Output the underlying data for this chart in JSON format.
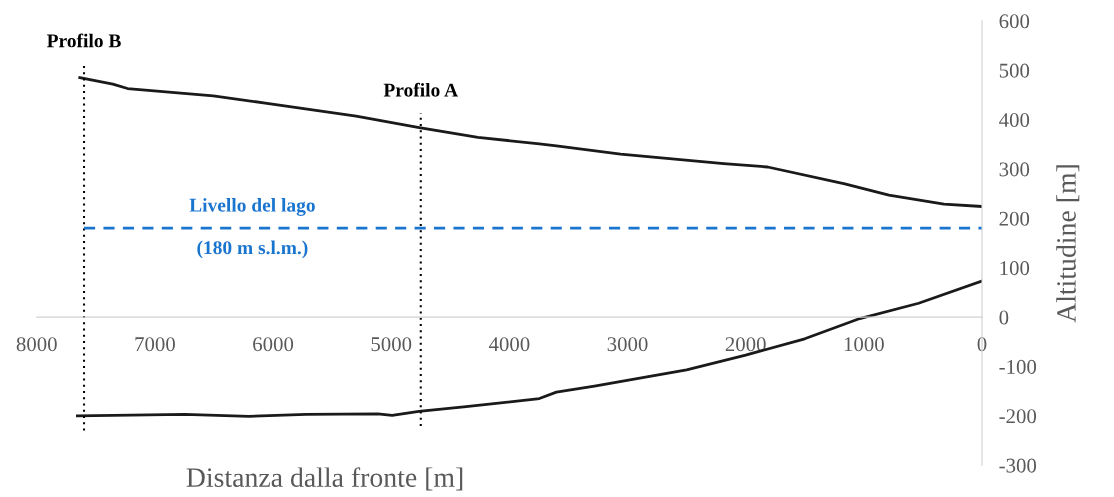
{
  "chart_data": {
    "type": "line",
    "xlabel": "Distanza dalla fronte [m]",
    "ylabel": "Altitudine [m]",
    "xlim": [
      8000,
      0
    ],
    "xticks": [
      8000,
      7000,
      6000,
      5000,
      4000,
      3000,
      2000,
      1000,
      0
    ],
    "ylim": [
      -300,
      600
    ],
    "yticks": [
      -300,
      -200,
      -100,
      0,
      100,
      200,
      300,
      400,
      500,
      600
    ],
    "marker": "none",
    "line_style": "solid",
    "series": [
      {
        "color": "#1a1a1a",
        "x": [
          7636,
          7356,
          7232,
          6506,
          6051,
          5297,
          4763,
          4266,
          3746,
          3602,
          3059,
          2186,
          1814,
          1161,
          788,
          322,
          0
        ],
        "values": [
          485,
          472,
          463,
          448,
          433,
          407,
          384,
          364,
          351,
          347,
          330,
          311,
          304,
          270,
          247,
          229,
          224
        ]
      },
      {
        "color": "#1a1a1a",
        "x": [
          7656,
          6749,
          6203,
          5720,
          5114,
          4992,
          4766,
          4386,
          3746,
          3602,
          3280,
          2500,
          2000,
          1500,
          1034,
          536,
          0
        ],
        "values": [
          -200,
          -197,
          -201,
          -197,
          -196,
          -199,
          -191,
          -182,
          -165,
          -152,
          -140,
          -107,
          -77,
          -44,
          -3,
          28,
          73
        ]
      }
    ],
    "ref_lines": [
      {
        "axis": "x",
        "value": 7600,
        "label": "Profilo B",
        "color": "#000000",
        "line_style": "dotted"
      },
      {
        "axis": "x",
        "value": 4750,
        "label": "Profilo A",
        "color": "#000000",
        "line_style": "dotted"
      },
      {
        "axis": "y",
        "value": 180,
        "label": "Livello del lago\n(180 m s.l.m.)",
        "color": "#1a75cf",
        "line_style": "dashed"
      }
    ]
  }
}
